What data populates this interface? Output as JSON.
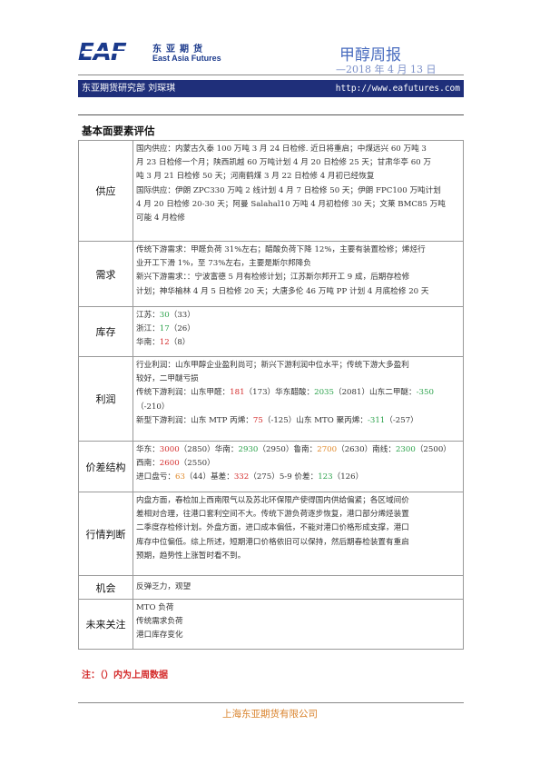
{
  "header": {
    "logo_mark": "EAF",
    "logo_cn": "东亚期货",
    "logo_en": "East Asia Futures",
    "report_title": "甲醇周报",
    "date": "—2018 年 4 月 13 日",
    "dept": "东亚期货研究部  刘琛琪",
    "url": "http://www.eafutures.com"
  },
  "section_title": "基本面要素评估",
  "rows": {
    "supply": {
      "label": "供应",
      "lines": [
        "国内供应：内蒙古久泰 100 万吨 3 月 24 日检修. 近日将重启；中煤远兴 60 万吨 3",
        "月 23 日检修一个月；陕西凯越 60 万吨计划 4 月 20 日检修 25 天；甘肃华亭 60 万",
        "吨 3 月 21 日检修 50 天；河南鹤煤 3 月 22 日检修 4 月初已经恢复",
        "国际供应：伊朗 ZPC330 万吨 2 线计划 4 月 7 日检修 50 天；伊朗 FPC100 万吨计划",
        "4 月 20 日检修 20-30 天；阿曼 Salahal10 万吨 4 月初检修 30 天；文莱 BMC85 万吨",
        "可能 4 月检修"
      ]
    },
    "demand": {
      "label": "需求",
      "lines": [
        "传统下游需求：甲醛负荷 31%左右；醋酸负荷下降 12%，主要有装置检修；烯烃行",
        "业开工下滑 1%，至 73%左右，主要是斯尔邦降负",
        "新兴下游需求：：宁波富德 5 月有检修计划；江苏斯尔邦开工 9 成，后期存检修",
        "计划；神华榆林 4 月 5 日检修 20 天；大唐多伦 46 万吨 PP 计划 4 月底检修 20 天"
      ]
    },
    "inventory": {
      "label": "库存",
      "items": [
        {
          "region": "江苏：",
          "value": "30",
          "prev": "（33）"
        },
        {
          "region": "浙江：",
          "value": "17",
          "prev": "（26）"
        },
        {
          "region": "华南：",
          "value": "12",
          "prev": "（8）"
        }
      ]
    },
    "profit": {
      "label": "利润",
      "line1": "行业利润：山东甲醇企业盈利尚可；新兴下游利润中位水平；传统下游大多盈利",
      "line2": "较好，二甲醚亏损",
      "trad_prefix": "传统下游利润：山东甲醛：",
      "trad_v1": "181",
      "trad_p1": "（173）华东醋酸：",
      "trad_v2": "2035",
      "trad_p2": "（2081）山东二甲醚：",
      "trad_v3": "-350",
      "trad_p3": "（-210）",
      "new_prefix": "新型下游利润：山东 MTP 丙烯：",
      "new_v1": "75",
      "new_p1": "（-125）山东 MTO 聚丙烯：",
      "new_v2": "-311",
      "new_p2": "（-257）"
    },
    "spread": {
      "label": "价差结构",
      "a_prefix": "华东：",
      "a_v1": "3000",
      "a_p1": "（2850）华南：",
      "a_v2": "2930",
      "a_p2": "（2950）鲁南：",
      "a_v3": "2700",
      "a_p3": "（2630）南线：",
      "a_v4": "2300",
      "a_p4": "（2500）",
      "b_prefix": "西南：",
      "b_v1": "2600",
      "b_p1": "（2550）",
      "c_prefix": "进口盘亏：",
      "c_v1": "63",
      "c_p1": "（44）基差：",
      "c_v2": "332",
      "c_p2": "（275）5-9 价差：",
      "c_v3": "123",
      "c_p3": "（126）"
    },
    "judgement": {
      "label": "行情判断",
      "lines": [
        "内盘方面，春检加上西南限气以及苏北环保限产使得国内供给偏紧；各区域间价",
        "差相对合理，往港口套利空间不大。传统下游负荷逐步恢复，港口部分烯烃装置",
        "二季度存检修计划。外盘方面，进口成本偏低，不能对港口价格形成支撑，港口",
        "库存中位偏低。综上所述，短期港口价格依旧可以保持，然后期春检装置有重启",
        "预期，趋势性上涨暂时看不到。"
      ]
    },
    "opportunity": {
      "label": "机会",
      "text": "反弹乏力，观望"
    },
    "future": {
      "label": "未来关注",
      "lines": [
        "MTO 负荷",
        "传统需求负荷",
        "港口库存变化"
      ]
    }
  },
  "note": "注：（）内为上周数据",
  "footer": "上海东亚期货有限公司",
  "colors": {
    "up": "#d42b2b",
    "down": "#2aa14a",
    "brand": "#1b3a8c",
    "footer": "#d9822b"
  }
}
